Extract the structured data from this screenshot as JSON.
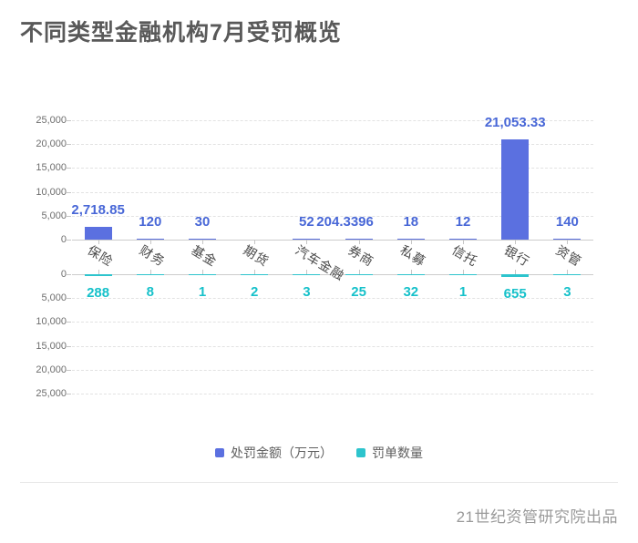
{
  "title": "不同类型金融机构7月受罚概览",
  "footer": "21世纪资管研究院出品",
  "colors": {
    "amount_bar": "#5b70e0",
    "amount_label": "#4867d7",
    "count_bar": "#2dc4cd",
    "count_label": "#17c1ca",
    "title_text": "#595959",
    "axis_text": "#6e6e6e",
    "grid": "#e2e2e2"
  },
  "chart_data": {
    "type": "bar",
    "title": "不同类型金融机构7月受罚概览",
    "categories": [
      "保险",
      "财务",
      "基金",
      "期货",
      "汽车金融",
      "券商",
      "私募",
      "信托",
      "银行",
      "资管"
    ],
    "series": [
      {
        "name": "处罚金额（万元）",
        "direction": "up",
        "color": "#5b70e0",
        "label_color": "#4867d7",
        "values": [
          2718.85,
          120,
          30,
          null,
          52,
          204.3396,
          18,
          12,
          21053.33,
          140
        ],
        "labels": [
          "2,718.85",
          "120",
          "30",
          "",
          "52",
          "204.3396",
          "18",
          "12",
          "21,053.33",
          "140"
        ]
      },
      {
        "name": "罚单数量",
        "direction": "down",
        "color": "#2dc4cd",
        "label_color": "#17c1ca",
        "values": [
          288,
          8,
          1,
          2,
          3,
          25,
          32,
          1,
          655,
          3
        ],
        "labels": [
          "288",
          "8",
          "1",
          "2",
          "3",
          "25",
          "32",
          "1",
          "655",
          "3"
        ]
      }
    ],
    "ylim": [
      0,
      25000
    ],
    "y_axis_ticks_top": [
      "25,000",
      "20,000",
      "15,000",
      "10,000",
      "5,000",
      "0"
    ],
    "y_axis_ticks_bottom": [
      "0",
      "5,000",
      "10,000",
      "15,000",
      "20,000",
      "25,000"
    ],
    "grid": "dashed horizontal, dual mirrored axes",
    "legend_position": "bottom center"
  }
}
